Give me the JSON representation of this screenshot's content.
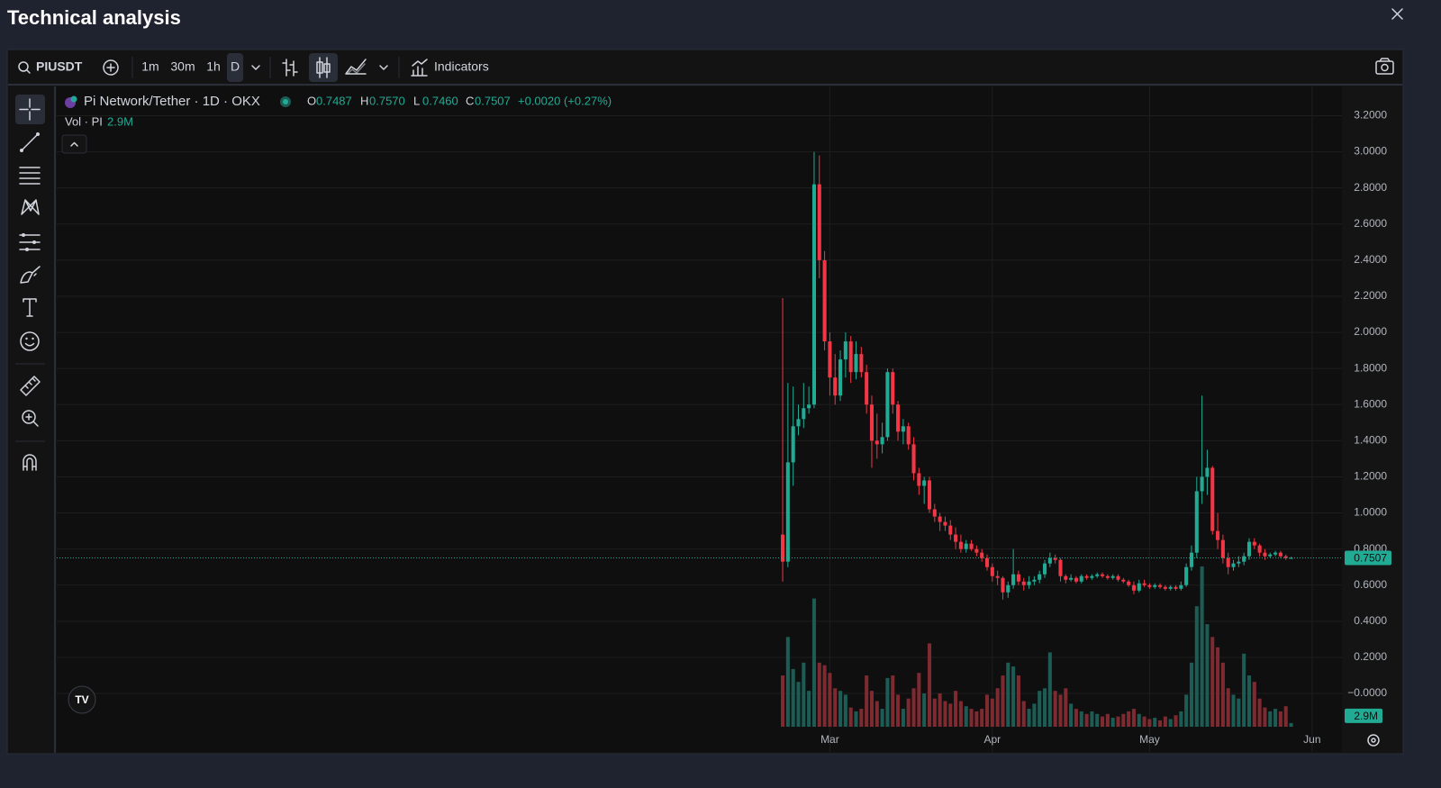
{
  "header": {
    "title": "Technical analysis"
  },
  "toolbar": {
    "symbol": "PIUSDT",
    "intervals": [
      "1m",
      "30m",
      "1h",
      "D"
    ],
    "active_interval": 3,
    "indicators": "Indicators"
  },
  "chart_data": {
    "type": "candlestick",
    "title": "Pi Network/Tether · 1D · OKX",
    "legend_keys": [
      "O",
      "H",
      "L",
      "C"
    ],
    "legend_values": [
      "0.7487",
      "0.7570",
      "0.7460",
      "0.7507"
    ],
    "legend_change": "+0.0020 (+0.27%)",
    "open": [
      0.88,
      0.73,
      1.28,
      1.48,
      1.52,
      1.58,
      1.6,
      2.82,
      2.4,
      1.95,
      1.75,
      1.65,
      1.85,
      1.95,
      1.78,
      1.88,
      1.78,
      1.6,
      1.4,
      1.38,
      1.42,
      1.78,
      1.6,
      1.45,
      1.48,
      1.38,
      1.22,
      1.15,
      1.18,
      1.02,
      0.98,
      0.95,
      0.93,
      0.88,
      0.84,
      0.8,
      0.83,
      0.8,
      0.78,
      0.75,
      0.7,
      0.65,
      0.64,
      0.56,
      0.6,
      0.66,
      0.62,
      0.6,
      0.62,
      0.63,
      0.66,
      0.72,
      0.75,
      0.74,
      0.65,
      0.63,
      0.64,
      0.62,
      0.65,
      0.64,
      0.65,
      0.66,
      0.65,
      0.64,
      0.65,
      0.63,
      0.62,
      0.6,
      0.57,
      0.61,
      0.6,
      0.59,
      0.6,
      0.59,
      0.58,
      0.59,
      0.58,
      0.6,
      0.7,
      0.78,
      1.12,
      1.2,
      1.25,
      0.9,
      0.85,
      0.75,
      0.7,
      0.72,
      0.73,
      0.76,
      0.84,
      0.82,
      0.78,
      0.76,
      0.77,
      0.78,
      0.76,
      0.7487
    ],
    "high": [
      2.19,
      1.72,
      1.7,
      1.6,
      1.72,
      1.7,
      3.0,
      2.98,
      2.45,
      2.0,
      1.88,
      1.9,
      2.0,
      1.98,
      1.95,
      1.92,
      1.82,
      1.65,
      1.55,
      1.5,
      1.8,
      1.8,
      1.62,
      1.52,
      1.5,
      1.42,
      1.25,
      1.2,
      1.2,
      1.05,
      1.0,
      0.98,
      0.96,
      0.92,
      0.88,
      0.85,
      0.85,
      0.82,
      0.8,
      0.77,
      0.72,
      0.68,
      0.65,
      0.62,
      0.8,
      0.68,
      0.64,
      0.65,
      0.65,
      0.68,
      0.74,
      0.78,
      0.77,
      0.75,
      0.66,
      0.66,
      0.65,
      0.66,
      0.66,
      0.66,
      0.67,
      0.67,
      0.66,
      0.66,
      0.66,
      0.64,
      0.63,
      0.62,
      0.63,
      0.63,
      0.61,
      0.61,
      0.61,
      0.6,
      0.6,
      0.6,
      0.62,
      0.72,
      0.82,
      1.2,
      1.65,
      1.35,
      1.26,
      1.0,
      0.88,
      0.78,
      0.74,
      0.76,
      0.78,
      0.86,
      0.86,
      0.83,
      0.8,
      0.78,
      0.79,
      0.79,
      0.77,
      0.757
    ],
    "low": [
      0.62,
      0.7,
      1.15,
      1.43,
      1.47,
      1.55,
      1.58,
      2.3,
      1.9,
      1.65,
      1.6,
      1.62,
      1.75,
      1.72,
      1.74,
      1.75,
      1.55,
      1.25,
      1.3,
      1.33,
      1.4,
      1.55,
      1.4,
      1.38,
      1.35,
      1.18,
      1.1,
      1.05,
      1.0,
      0.95,
      0.9,
      0.9,
      0.85,
      0.8,
      0.78,
      0.78,
      0.79,
      0.76,
      0.73,
      0.68,
      0.62,
      0.6,
      0.52,
      0.53,
      0.58,
      0.6,
      0.57,
      0.58,
      0.6,
      0.61,
      0.64,
      0.7,
      0.72,
      0.62,
      0.61,
      0.62,
      0.61,
      0.61,
      0.63,
      0.63,
      0.64,
      0.64,
      0.63,
      0.63,
      0.62,
      0.61,
      0.59,
      0.55,
      0.56,
      0.59,
      0.58,
      0.58,
      0.58,
      0.57,
      0.57,
      0.57,
      0.57,
      0.59,
      0.68,
      0.75,
      1.05,
      1.1,
      0.88,
      0.8,
      0.72,
      0.66,
      0.68,
      0.7,
      0.71,
      0.74,
      0.8,
      0.76,
      0.74,
      0.75,
      0.76,
      0.75,
      0.74,
      0.746
    ],
    "close": [
      0.73,
      1.28,
      1.48,
      1.52,
      1.58,
      1.6,
      2.82,
      2.4,
      1.95,
      1.75,
      1.65,
      1.85,
      1.95,
      1.78,
      1.88,
      1.78,
      1.6,
      1.4,
      1.38,
      1.42,
      1.78,
      1.6,
      1.45,
      1.48,
      1.38,
      1.22,
      1.15,
      1.18,
      1.02,
      0.98,
      0.95,
      0.93,
      0.88,
      0.84,
      0.8,
      0.83,
      0.8,
      0.78,
      0.75,
      0.7,
      0.65,
      0.64,
      0.56,
      0.6,
      0.66,
      0.62,
      0.6,
      0.62,
      0.63,
      0.66,
      0.72,
      0.75,
      0.74,
      0.65,
      0.63,
      0.64,
      0.62,
      0.65,
      0.64,
      0.65,
      0.66,
      0.65,
      0.64,
      0.65,
      0.63,
      0.62,
      0.6,
      0.57,
      0.61,
      0.6,
      0.59,
      0.6,
      0.59,
      0.58,
      0.59,
      0.58,
      0.6,
      0.7,
      0.78,
      1.12,
      1.2,
      1.25,
      0.9,
      0.85,
      0.75,
      0.7,
      0.72,
      0.73,
      0.76,
      0.84,
      0.82,
      0.78,
      0.76,
      0.77,
      0.78,
      0.76,
      0.75,
      0.7507
    ],
    "up_color": "#22ab94",
    "down_color": "#f23645",
    "volume": {
      "name": "Vol · PI",
      "values": [
        40,
        70,
        45,
        35,
        50,
        28,
        100,
        50,
        48,
        42,
        30,
        28,
        25,
        15,
        12,
        14,
        40,
        28,
        20,
        14,
        38,
        40,
        25,
        14,
        22,
        30,
        42,
        26,
        65,
        22,
        26,
        20,
        18,
        28,
        20,
        16,
        14,
        12,
        14,
        25,
        22,
        30,
        40,
        50,
        47,
        40,
        20,
        14,
        18,
        28,
        30,
        58,
        28,
        25,
        30,
        18,
        14,
        12,
        10,
        12,
        10,
        8,
        10,
        7,
        8,
        10,
        12,
        14,
        10,
        8,
        6,
        7,
        5,
        8,
        6,
        9,
        12,
        25,
        50,
        94,
        125,
        80,
        70,
        62,
        50,
        30,
        25,
        22,
        57,
        40,
        35,
        22,
        15,
        12,
        14,
        12,
        16,
        2.9
      ],
      "value_labels": [
        null,
        null,
        null,
        null,
        null,
        null,
        null,
        null,
        null,
        null,
        null,
        null,
        null,
        null,
        null,
        null,
        null,
        null,
        null,
        null,
        null,
        null,
        null,
        null,
        null,
        null,
        null,
        null,
        null,
        null,
        null,
        null,
        null,
        null,
        null,
        null,
        null,
        null,
        null,
        null,
        null,
        null,
        null,
        null,
        null,
        null,
        null,
        null,
        null,
        null,
        null,
        null,
        null,
        null,
        null,
        null,
        null,
        null,
        null,
        null,
        null,
        null,
        null,
        null,
        null,
        null,
        null,
        null,
        null,
        null,
        null,
        null,
        null,
        null,
        null,
        null,
        null,
        null,
        null,
        null,
        null,
        null,
        null,
        null,
        null,
        null,
        null,
        null,
        null,
        null,
        null,
        null,
        null,
        null,
        null,
        null,
        null,
        "2.9M"
      ],
      "ylim": [
        0,
        500
      ],
      "up_color": "#1d5c54",
      "down_color": "#7d2a31"
    },
    "xlim": [
      -138.5,
      106.7
    ],
    "xticks": [
      {
        "value": 9,
        "label": "Mar"
      },
      {
        "value": 40,
        "label": "Apr"
      },
      {
        "value": 70,
        "label": "May"
      },
      {
        "value": 101,
        "label": "Jun"
      }
    ],
    "ylim": [
      -0.324,
      3.362
    ],
    "yticks": [
      {
        "value": 3.2,
        "label": "3.2000"
      },
      {
        "value": 3.0,
        "label": "3.0000"
      },
      {
        "value": 2.8,
        "label": "2.8000"
      },
      {
        "value": 2.6,
        "label": "2.6000"
      },
      {
        "value": 2.4,
        "label": "2.4000"
      },
      {
        "value": 2.2,
        "label": "2.2000"
      },
      {
        "value": 2.0,
        "label": "2.0000"
      },
      {
        "value": 1.8,
        "label": "1.8000"
      },
      {
        "value": 1.6,
        "label": "1.6000"
      },
      {
        "value": 1.4,
        "label": "1.4000"
      },
      {
        "value": 1.2,
        "label": "1.2000"
      },
      {
        "value": 1.0,
        "label": "1.0000"
      },
      {
        "value": 0.8,
        "label": "0.8000"
      },
      {
        "value": 0.6,
        "label": "0.6000"
      },
      {
        "value": 0.4,
        "label": "0.4000"
      },
      {
        "value": 0.2,
        "label": "0.2000"
      },
      {
        "value": 0,
        "label": "−0.0000"
      }
    ],
    "grid": true
  }
}
